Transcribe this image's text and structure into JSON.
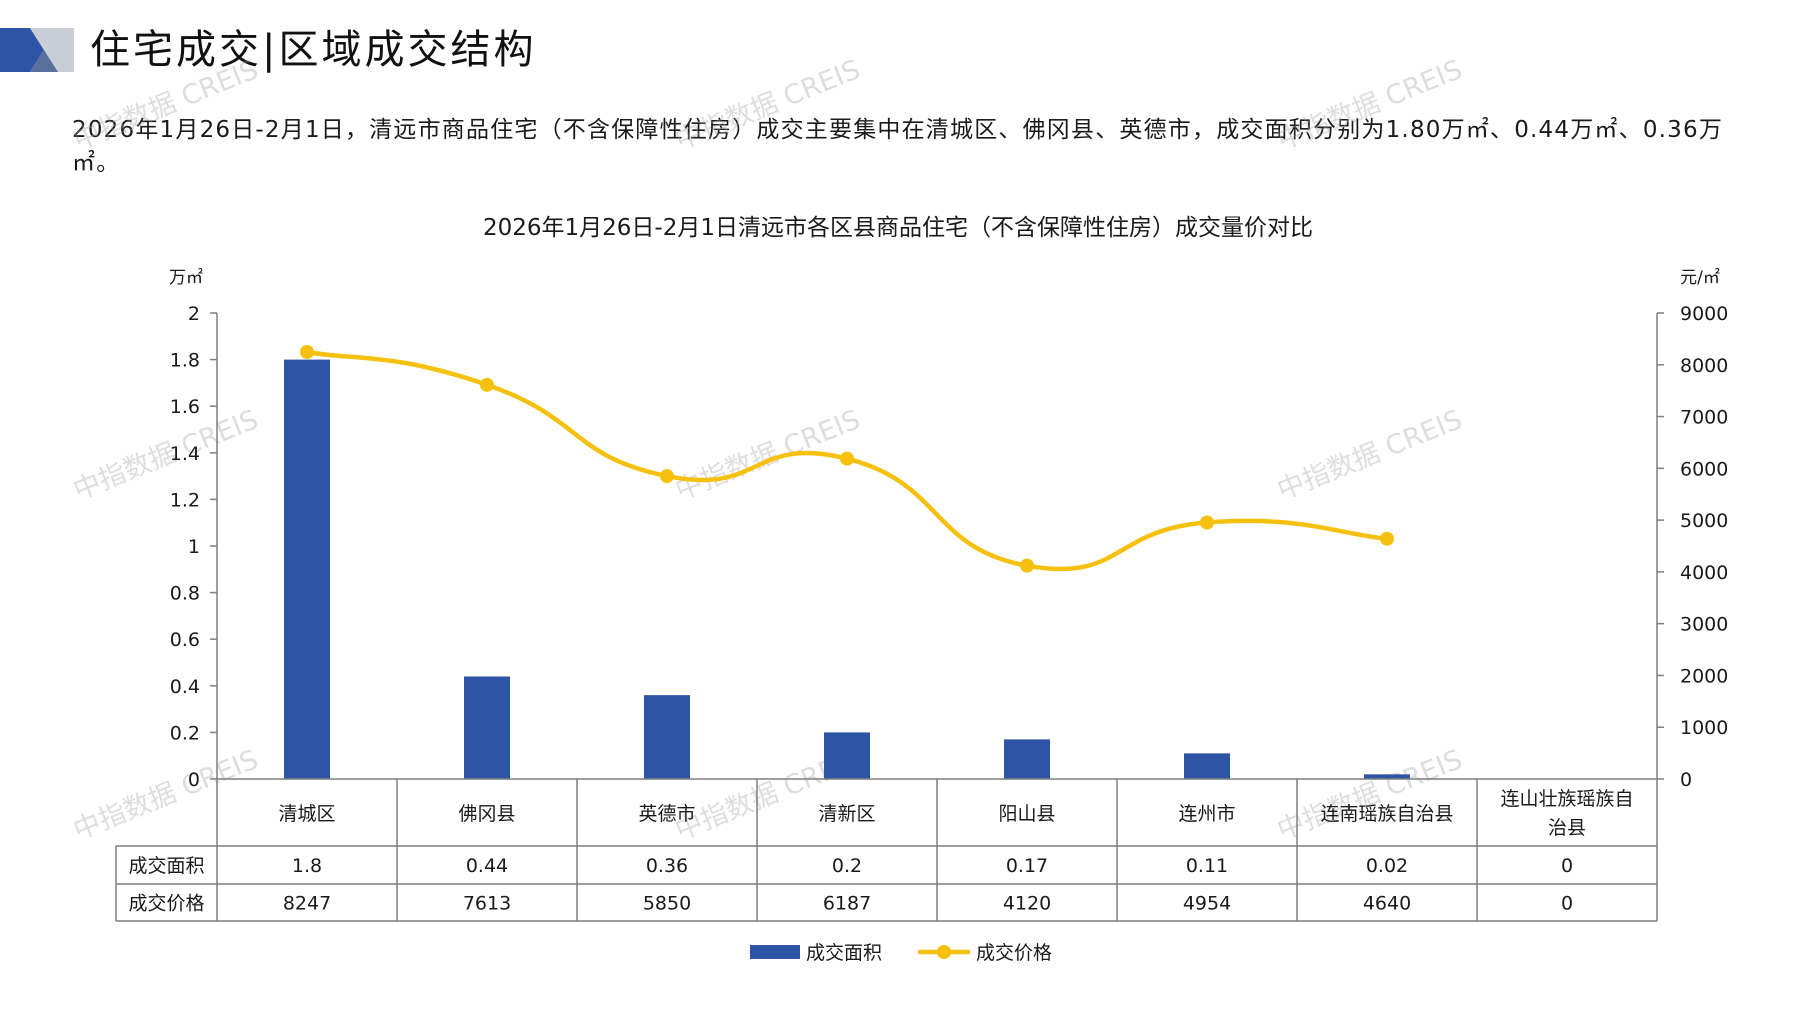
{
  "header": {
    "title": "住宅成交|区域成交结构",
    "summary": "2026年1月26日-2月1日，清远市商品住宅（不含保障性住房）成交主要集中在清城区、佛冈县、英德市，成交面积分别为1.80万㎡、0.44万㎡、0.36万㎡。"
  },
  "watermark": "中指数据 CREIS",
  "colors": {
    "bar": "#2E55A5",
    "line": "#F5C10E",
    "axis": "#7f7f7f",
    "logo_dark": "#2E55A5",
    "logo_light": "#c9ced6"
  },
  "chart_data": {
    "type": "bar+line",
    "title": "2026年1月26日-2月1日清远市各区县商品住宅（不含保障性住房）成交量价对比",
    "y_left_unit": "万㎡",
    "y_right_unit": "元/㎡",
    "y_left_ticks": [
      "2",
      "1.8",
      "1.6",
      "1.4",
      "1.2",
      "1",
      "0.8",
      "0.6",
      "0.4",
      "0.2",
      "0"
    ],
    "y_right_ticks": [
      "9000",
      "8000",
      "7000",
      "6000",
      "5000",
      "4000",
      "3000",
      "2000",
      "1000",
      "0"
    ],
    "y_left_range": [
      0,
      2
    ],
    "y_right_range": [
      0,
      9000
    ],
    "categories": [
      "清城区",
      "佛冈县",
      "英德市",
      "清新区",
      "阳山县",
      "连州市",
      "连南瑶族自治县",
      "连山壮族瑶族自治县"
    ],
    "series": [
      {
        "name": "成交面积",
        "type": "bar",
        "axis": "left",
        "values": [
          1.8,
          0.44,
          0.36,
          0.2,
          0.17,
          0.11,
          0.02,
          0
        ]
      },
      {
        "name": "成交价格",
        "type": "line",
        "axis": "right",
        "values": [
          8247,
          7613,
          5850,
          6187,
          4120,
          4954,
          4640,
          0
        ]
      }
    ],
    "table": {
      "rows": [
        {
          "label": "成交面积",
          "cells": [
            "1.8",
            "0.44",
            "0.36",
            "0.2",
            "0.17",
            "0.11",
            "0.02",
            "0"
          ]
        },
        {
          "label": "成交价格",
          "cells": [
            "8247",
            "7613",
            "5850",
            "6187",
            "4120",
            "4954",
            "4640",
            "0"
          ]
        }
      ]
    },
    "legend": [
      "成交面积",
      "成交价格"
    ],
    "legend_position": "bottom"
  }
}
